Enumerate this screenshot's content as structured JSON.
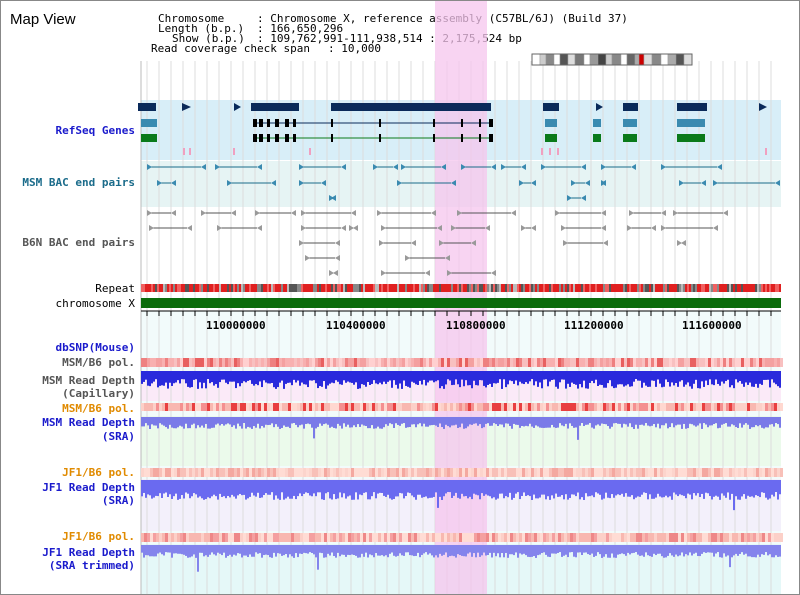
{
  "app_title": "Map View",
  "info": {
    "chromosome_label": "Chromosome",
    "chromosome_value": ": Chromosome X, reference assembly (C57BL/6J) (Build 37)",
    "length_label": "Length (b.p.)",
    "length_value": ": 166,650,296",
    "show_label": "Show (b.p.)",
    "show_value": ": 109,762,991-111,938,514 : 2,175,524 bp",
    "coverage_label": "Read coverage check span",
    "coverage_value": ": 10,000"
  },
  "tracks": {
    "refseq": "RefSeq Genes",
    "msm_bac": "MSM BAC end pairs",
    "b6n_bac": "B6N BAC end pairs",
    "repeat": "Repeat",
    "chromosome": "chromosome X",
    "dbsnp": "dbSNP(Mouse)",
    "msm_b6_pol_1": "MSM/B6 pol.",
    "msm_depth_cap_1": "MSM Read Depth",
    "msm_depth_cap_2": "(Capillary)",
    "msm_b6_pol_2": "MSM/B6 pol.",
    "msm_depth_sra_1": "MSM Read Depth",
    "msm_depth_sra_2": "(SRA)",
    "jf1_b6_pol_1": "JF1/B6 pol.",
    "jf1_depth_sra_1": "JF1 Read Depth",
    "jf1_depth_sra_2": "(SRA)",
    "jf1_b6_pol_2": "JF1/B6 pol.",
    "jf1_depth_trim_1": "JF1 Read Depth",
    "jf1_depth_trim_2": "(SRA trimmed)"
  },
  "ruler": {
    "tick_labels": [
      "110000000",
      "110400000",
      "110800000",
      "111200000",
      "111600000"
    ]
  },
  "colors": {
    "refseq_label": "#1a1acc",
    "msm_bac_label": "#1a6b8a",
    "b6n_bac_label": "#555555",
    "dbsnp_label": "#1a1acc",
    "msm_pol_label": "#555555",
    "msm_pol2_label": "#e08a00",
    "jf1_pol_label": "#e08a00",
    "depth_label": "#1a1acc",
    "highlight": "#f5c6ee",
    "refseq_bg": "#d8eef8",
    "depth_bar": "#2a2adc",
    "chromosome_bar": "#0b6b0b"
  }
}
